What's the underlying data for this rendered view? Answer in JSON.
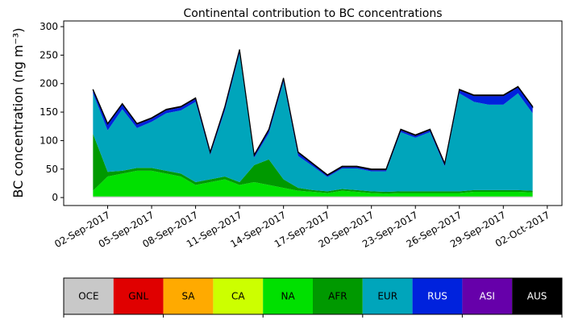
{
  "chart_data": {
    "type": "stacked_area",
    "title": "Continental contribution to BC concentrations",
    "ylabel": "BC concentration (ng m⁻³)",
    "x": [
      "2017-09-01",
      "2017-09-02",
      "2017-09-03",
      "2017-09-04",
      "2017-09-05",
      "2017-09-06",
      "2017-09-07",
      "2017-09-08",
      "2017-09-09",
      "2017-09-10",
      "2017-09-11",
      "2017-09-12",
      "2017-09-13",
      "2017-09-14",
      "2017-09-15",
      "2017-09-16",
      "2017-09-17",
      "2017-09-18",
      "2017-09-19",
      "2017-09-20",
      "2017-09-21",
      "2017-09-22",
      "2017-09-23",
      "2017-09-24",
      "2017-09-25",
      "2017-09-26",
      "2017-09-27",
      "2017-09-28",
      "2017-09-29",
      "2017-09-30",
      "2017-10-01"
    ],
    "xlim": [
      "2017-08-30",
      "2017-10-03"
    ],
    "xticks": [
      {
        "value": "2017-09-02",
        "label": "02-Sep-2017"
      },
      {
        "value": "2017-09-05",
        "label": "05-Sep-2017"
      },
      {
        "value": "2017-09-08",
        "label": "08-Sep-2017"
      },
      {
        "value": "2017-09-11",
        "label": "11-Sep-2017"
      },
      {
        "value": "2017-09-14",
        "label": "14-Sep-2017"
      },
      {
        "value": "2017-09-17",
        "label": "17-Sep-2017"
      },
      {
        "value": "2017-09-20",
        "label": "20-Sep-2017"
      },
      {
        "value": "2017-09-23",
        "label": "23-Sep-2017"
      },
      {
        "value": "2017-09-26",
        "label": "26-Sep-2017"
      },
      {
        "value": "2017-09-29",
        "label": "29-Sep-2017"
      },
      {
        "value": "2017-10-02",
        "label": "02-Oct-2017"
      }
    ],
    "ylim": [
      -14,
      310
    ],
    "yticks": [
      0,
      50,
      100,
      150,
      200,
      250,
      300
    ],
    "series": [
      {
        "name": "OCE",
        "color": "#c8c8c8",
        "values": [
          2,
          2,
          2,
          2,
          2,
          2,
          2,
          2,
          2,
          2,
          2,
          2,
          2,
          2,
          2,
          2,
          2,
          2,
          2,
          2,
          2,
          2,
          2,
          2,
          2,
          2,
          2,
          2,
          2,
          2,
          2
        ]
      },
      {
        "name": "GNL",
        "color": "#e00000",
        "values": [
          0,
          0,
          0,
          0,
          0,
          0,
          0,
          0,
          0,
          0,
          0,
          0,
          0,
          0,
          0,
          0,
          0,
          0,
          0,
          0,
          0,
          0,
          0,
          0,
          0,
          0,
          0,
          0,
          0,
          0,
          0
        ]
      },
      {
        "name": "SA",
        "color": "#ffaa00",
        "values": [
          0,
          0,
          0,
          0,
          0,
          0,
          0,
          0,
          0,
          0,
          0,
          0,
          0,
          0,
          0,
          0,
          0,
          0,
          0,
          0,
          0,
          0,
          0,
          0,
          0,
          0,
          0,
          0,
          0,
          0,
          0
        ]
      },
      {
        "name": "CA",
        "color": "#ccff00",
        "values": [
          0,
          0,
          0,
          0,
          0,
          0,
          0,
          0,
          0,
          0,
          0,
          0,
          0,
          0,
          0,
          0,
          0,
          0,
          0,
          0,
          0,
          0,
          0,
          0,
          0,
          0,
          0,
          0,
          0,
          0,
          0
        ]
      },
      {
        "name": "NA",
        "color": "#00e000",
        "values": [
          10,
          35,
          40,
          45,
          45,
          40,
          35,
          20,
          25,
          30,
          20,
          25,
          20,
          15,
          10,
          8,
          6,
          10,
          8,
          6,
          5,
          6,
          6,
          6,
          6,
          6,
          8,
          8,
          8,
          8,
          7
        ]
      },
      {
        "name": "AFR",
        "color": "#009900",
        "values": [
          100,
          8,
          5,
          5,
          5,
          5,
          5,
          5,
          5,
          5,
          5,
          30,
          45,
          15,
          5,
          3,
          3,
          3,
          3,
          3,
          3,
          3,
          3,
          3,
          3,
          3,
          3,
          3,
          3,
          3,
          3
        ]
      },
      {
        "name": "EUR",
        "color": "#00a5bb",
        "values": [
          71,
          73,
          108,
          70,
          81,
          101,
          111,
          141,
          43,
          116,
          226,
          13,
          46,
          171,
          56,
          42,
          25,
          36,
          38,
          35,
          36,
          104,
          94,
          104,
          44,
          172,
          155,
          150,
          150,
          170,
          136
        ]
      },
      {
        "name": "RUS",
        "color": "#0022dd",
        "values": [
          5,
          10,
          8,
          6,
          5,
          5,
          5,
          5,
          3,
          5,
          5,
          3,
          5,
          5,
          5,
          3,
          2,
          2,
          2,
          2,
          2,
          3,
          3,
          3,
          3,
          5,
          10,
          15,
          15,
          10,
          10
        ]
      },
      {
        "name": "ASI",
        "color": "#6600aa",
        "values": [
          1,
          1,
          1,
          1,
          1,
          1,
          1,
          1,
          1,
          1,
          1,
          1,
          1,
          1,
          1,
          1,
          1,
          1,
          1,
          1,
          1,
          1,
          1,
          1,
          1,
          1,
          1,
          1,
          1,
          1,
          1
        ]
      },
      {
        "name": "AUS",
        "color": "#000000",
        "values": [
          1,
          1,
          1,
          1,
          1,
          1,
          1,
          1,
          1,
          1,
          1,
          1,
          1,
          1,
          1,
          1,
          1,
          1,
          1,
          1,
          1,
          1,
          1,
          1,
          1,
          1,
          1,
          1,
          1,
          1,
          1
        ]
      }
    ]
  }
}
